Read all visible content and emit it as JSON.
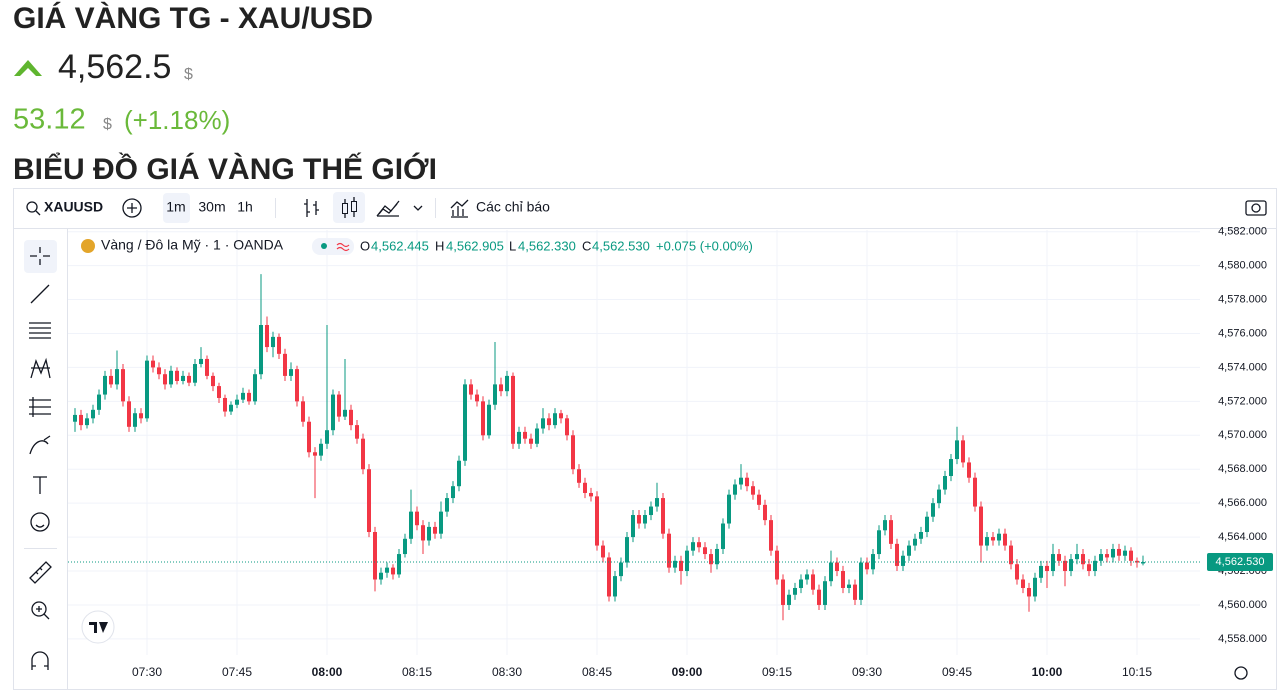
{
  "header": {
    "title": "GIÁ VÀNG TG - XAU/USD",
    "price": "4,562.5",
    "price_unit": "$",
    "change": "53.12",
    "change_unit": "$",
    "change_pct": "(+1.18%)",
    "section_title": "BIỂU ĐỒ GIÁ VÀNG THẾ GIỚI"
  },
  "toolbar": {
    "symbol": "XAUUSD",
    "intervals": [
      "1m",
      "30m",
      "1h"
    ],
    "indicators": "Các chỉ báo"
  },
  "legend": {
    "name": "Vàng / Đô la Mỹ · 1 · OANDA",
    "o_label": "O",
    "o": "4,562.445",
    "h_label": "H",
    "h": "4,562.905",
    "l_label": "L",
    "l": "4,562.330",
    "c_label": "C",
    "c": "4,562.530",
    "change": "+0.075 (+0.00%)"
  },
  "chart_data": {
    "type": "candlestick",
    "up_color": "#089981",
    "down_color": "#f23645",
    "grid": true,
    "ylim": [
      4557.05,
      4582.1
    ],
    "yticks": [
      {
        "value": 4558,
        "label": "4,558.000"
      },
      {
        "value": 4560,
        "label": "4,560.000"
      },
      {
        "value": 4562,
        "label": "4,562.000"
      },
      {
        "value": 4564,
        "label": "4,564.000"
      },
      {
        "value": 4566,
        "label": "4,566.000"
      },
      {
        "value": 4568,
        "label": "4,568.000"
      },
      {
        "value": 4570,
        "label": "4,570.000"
      },
      {
        "value": 4572,
        "label": "4,572.000"
      },
      {
        "value": 4574,
        "label": "4,574.000"
      },
      {
        "value": 4576,
        "label": "4,576.000"
      },
      {
        "value": 4578,
        "label": "4,578.000"
      },
      {
        "value": 4580,
        "label": "4,580.000"
      },
      {
        "value": 4582,
        "label": "4,582.000"
      }
    ],
    "xticks": [
      "07:30",
      "07:45",
      "08:00",
      "08:15",
      "08:30",
      "08:45",
      "09:00",
      "09:15",
      "09:30",
      "09:45",
      "10:00",
      "10:15"
    ],
    "last": {
      "value": 4562.53,
      "label": "4,562.530"
    },
    "x": [
      "07:18",
      "07:19",
      "07:20",
      "07:21",
      "07:22",
      "07:23",
      "07:24",
      "07:25",
      "07:26",
      "07:27",
      "07:28",
      "07:29",
      "07:30",
      "07:31",
      "07:32",
      "07:33",
      "07:34",
      "07:35",
      "07:36",
      "07:37",
      "07:38",
      "07:39",
      "07:40",
      "07:41",
      "07:42",
      "07:43",
      "07:44",
      "07:45",
      "07:46",
      "07:47",
      "07:48",
      "07:49",
      "07:50",
      "07:51",
      "07:52",
      "07:53",
      "07:54",
      "07:55",
      "07:56",
      "07:57",
      "07:58",
      "07:59",
      "08:00",
      "08:01",
      "08:02",
      "08:03",
      "08:04",
      "08:05",
      "08:06",
      "08:07",
      "08:08",
      "08:09",
      "08:10",
      "08:11",
      "08:12",
      "08:13",
      "08:14",
      "08:15",
      "08:16",
      "08:17",
      "08:18",
      "08:19",
      "08:20",
      "08:21",
      "08:22",
      "08:23",
      "08:24",
      "08:25",
      "08:26",
      "08:27",
      "08:28",
      "08:29",
      "08:30",
      "08:31",
      "08:32",
      "08:33",
      "08:34",
      "08:35",
      "08:36",
      "08:37",
      "08:38",
      "08:39",
      "08:40",
      "08:41",
      "08:42",
      "08:43",
      "08:44",
      "08:45",
      "08:46",
      "08:47",
      "08:48",
      "08:49",
      "08:50",
      "08:51",
      "08:52",
      "08:53",
      "08:54",
      "08:55",
      "08:56",
      "08:57",
      "08:58",
      "08:59",
      "09:00",
      "09:01",
      "09:02",
      "09:03",
      "09:04",
      "09:05",
      "09:06",
      "09:07",
      "09:08",
      "09:09",
      "09:10",
      "09:11",
      "09:12",
      "09:13",
      "09:14",
      "09:15",
      "09:16",
      "09:17",
      "09:18",
      "09:19",
      "09:20",
      "09:21",
      "09:22",
      "09:23",
      "09:24",
      "09:25",
      "09:26",
      "09:27",
      "09:28",
      "09:29",
      "09:30",
      "09:31",
      "09:32",
      "09:33",
      "09:34",
      "09:35",
      "09:36",
      "09:37",
      "09:38",
      "09:39",
      "09:40",
      "09:41",
      "09:42",
      "09:43",
      "09:44",
      "09:45",
      "09:46",
      "09:47",
      "09:48",
      "09:49",
      "09:50",
      "09:51",
      "09:52",
      "09:53",
      "09:54",
      "09:55",
      "09:56",
      "09:57",
      "09:58",
      "09:59",
      "10:00",
      "10:01",
      "10:02",
      "10:03",
      "10:04",
      "10:05",
      "10:06",
      "10:07",
      "10:08",
      "10:09",
      "10:10",
      "10:11",
      "10:12",
      "10:13",
      "10:14",
      "10:15",
      "10:16"
    ],
    "ohlc": [
      [
        4570.8,
        4571.6,
        4570.2,
        4571.2
      ],
      [
        4571.2,
        4571.5,
        4570.3,
        4570.6
      ],
      [
        4570.6,
        4571.3,
        4570.4,
        4571.0
      ],
      [
        4571.0,
        4571.8,
        4570.7,
        4571.5
      ],
      [
        4571.5,
        4572.7,
        4571.2,
        4572.4
      ],
      [
        4572.4,
        4573.8,
        4572.1,
        4573.5
      ],
      [
        4573.5,
        4573.9,
        4572.8,
        4573.0
      ],
      [
        4573.0,
        4575.0,
        4572.7,
        4573.9
      ],
      [
        4573.9,
        4574.2,
        4571.7,
        4572.0
      ],
      [
        4572.0,
        4572.3,
        4570.2,
        4570.5
      ],
      [
        4570.5,
        4571.6,
        4570.2,
        4571.3
      ],
      [
        4571.3,
        4571.6,
        4570.7,
        4571.0
      ],
      [
        4571.0,
        4574.7,
        4570.8,
        4574.4
      ],
      [
        4574.4,
        4574.7,
        4573.7,
        4574.0
      ],
      [
        4574.0,
        4574.3,
        4573.3,
        4573.6
      ],
      [
        4573.6,
        4573.9,
        4572.7,
        4573.0
      ],
      [
        4573.0,
        4574.1,
        4572.8,
        4573.8
      ],
      [
        4573.8,
        4574.0,
        4573.0,
        4573.2
      ],
      [
        4573.2,
        4573.8,
        4573.0,
        4573.5
      ],
      [
        4573.5,
        4573.7,
        4572.9,
        4573.1
      ],
      [
        4573.1,
        4574.5,
        4572.9,
        4574.2
      ],
      [
        4574.2,
        4575.2,
        4574.0,
        4574.5
      ],
      [
        4574.5,
        4574.7,
        4573.3,
        4573.5
      ],
      [
        4573.5,
        4573.7,
        4572.6,
        4572.9
      ],
      [
        4572.9,
        4573.1,
        4571.9,
        4572.2
      ],
      [
        4572.2,
        4572.4,
        4571.1,
        4571.4
      ],
      [
        4571.4,
        4572.0,
        4571.2,
        4571.8
      ],
      [
        4571.8,
        4572.4,
        4571.6,
        4572.1
      ],
      [
        4572.1,
        4572.8,
        4571.9,
        4572.5
      ],
      [
        4572.5,
        4572.7,
        4571.8,
        4572.0
      ],
      [
        4572.0,
        4573.9,
        4571.8,
        4573.6
      ],
      [
        4573.6,
        4579.5,
        4573.3,
        4576.5
      ],
      [
        4576.5,
        4577.0,
        4574.9,
        4575.2
      ],
      [
        4575.2,
        4576.1,
        4574.6,
        4575.8
      ],
      [
        4575.8,
        4576.0,
        4574.5,
        4574.8
      ],
      [
        4574.8,
        4575.1,
        4573.2,
        4573.5
      ],
      [
        4573.5,
        4574.3,
        4573.2,
        4573.9
      ],
      [
        4573.9,
        4574.1,
        4571.7,
        4572.0
      ],
      [
        4572.0,
        4572.3,
        4570.5,
        4570.8
      ],
      [
        4570.8,
        4571.1,
        4568.7,
        4569.0
      ],
      [
        4569.0,
        4569.3,
        4566.3,
        4568.8
      ],
      [
        4568.8,
        4569.8,
        4568.5,
        4569.5
      ],
      [
        4569.5,
        4576.5,
        4569.2,
        4570.3
      ],
      [
        4570.3,
        4572.7,
        4570.0,
        4572.4
      ],
      [
        4572.4,
        4572.6,
        4570.8,
        4571.1
      ],
      [
        4571.1,
        4574.5,
        4570.9,
        4571.5
      ],
      [
        4571.5,
        4571.8,
        4570.3,
        4570.6
      ],
      [
        4570.6,
        4570.9,
        4569.5,
        4569.8
      ],
      [
        4569.8,
        4570.1,
        4567.7,
        4568.0
      ],
      [
        4568.0,
        4568.3,
        4564.0,
        4564.3
      ],
      [
        4564.3,
        4564.6,
        4560.8,
        4561.5
      ],
      [
        4561.5,
        4562.2,
        4561.2,
        4561.9
      ],
      [
        4561.9,
        4562.5,
        4561.6,
        4562.2
      ],
      [
        4562.2,
        4562.4,
        4561.5,
        4561.8
      ],
      [
        4561.8,
        4563.3,
        4561.6,
        4563.0
      ],
      [
        4563.0,
        4564.2,
        4562.8,
        4563.9
      ],
      [
        4563.9,
        4566.8,
        4563.6,
        4565.5
      ],
      [
        4565.5,
        4565.8,
        4564.4,
        4564.7
      ],
      [
        4564.7,
        4565.0,
        4563.0,
        4563.8
      ],
      [
        4563.8,
        4564.9,
        4563.5,
        4564.6
      ],
      [
        4564.6,
        4564.9,
        4563.9,
        4564.2
      ],
      [
        4564.2,
        4566.1,
        4563.9,
        4565.5
      ],
      [
        4565.5,
        4566.6,
        4565.2,
        4566.3
      ],
      [
        4566.3,
        4567.3,
        4566.0,
        4567.0
      ],
      [
        4567.0,
        4568.8,
        4566.7,
        4568.5
      ],
      [
        4568.5,
        4573.3,
        4568.2,
        4573.0
      ],
      [
        4573.0,
        4573.3,
        4572.1,
        4572.4
      ],
      [
        4572.4,
        4572.7,
        4571.7,
        4572.0
      ],
      [
        4572.0,
        4572.3,
        4569.7,
        4570.0
      ],
      [
        4570.0,
        4572.1,
        4569.8,
        4571.8
      ],
      [
        4571.8,
        4575.5,
        4571.5,
        4573.0
      ],
      [
        4573.0,
        4573.4,
        4572.3,
        4572.6
      ],
      [
        4572.6,
        4573.8,
        4572.3,
        4573.5
      ],
      [
        4573.5,
        4573.7,
        4569.2,
        4569.5
      ],
      [
        4569.5,
        4570.5,
        4569.2,
        4570.2
      ],
      [
        4570.2,
        4570.5,
        4569.5,
        4569.8
      ],
      [
        4569.8,
        4570.1,
        4569.2,
        4569.5
      ],
      [
        4569.5,
        4570.7,
        4569.3,
        4570.4
      ],
      [
        4570.4,
        4571.6,
        4570.1,
        4571.0
      ],
      [
        4571.0,
        4571.3,
        4570.3,
        4570.6
      ],
      [
        4570.6,
        4571.6,
        4570.4,
        4571.3
      ],
      [
        4571.3,
        4571.5,
        4570.7,
        4571.0
      ],
      [
        4571.0,
        4571.2,
        4569.7,
        4570.0
      ],
      [
        4570.0,
        4570.3,
        4567.7,
        4568.0
      ],
      [
        4568.0,
        4568.3,
        4566.9,
        4567.2
      ],
      [
        4567.2,
        4567.5,
        4566.3,
        4566.6
      ],
      [
        4566.6,
        4566.9,
        4566.1,
        4566.4
      ],
      [
        4566.4,
        4566.7,
        4563.2,
        4563.5
      ],
      [
        4563.5,
        4563.8,
        4562.5,
        4562.8
      ],
      [
        4562.8,
        4563.1,
        4560.2,
        4560.5
      ],
      [
        4560.5,
        4562.0,
        4560.2,
        4561.7
      ],
      [
        4561.7,
        4562.8,
        4561.4,
        4562.5
      ],
      [
        4562.5,
        4564.3,
        4562.2,
        4564.0
      ],
      [
        4564.0,
        4565.6,
        4563.7,
        4565.3
      ],
      [
        4565.3,
        4565.6,
        4564.5,
        4564.8
      ],
      [
        4564.8,
        4565.6,
        4564.5,
        4565.3
      ],
      [
        4565.3,
        4566.1,
        4565.0,
        4565.8
      ],
      [
        4565.8,
        4567.2,
        4565.5,
        4566.3
      ],
      [
        4566.3,
        4566.6,
        4563.9,
        4564.2
      ],
      [
        4564.2,
        4564.5,
        4561.9,
        4562.2
      ],
      [
        4562.2,
        4562.9,
        4561.9,
        4562.6
      ],
      [
        4562.6,
        4562.9,
        4561.2,
        4562.0
      ],
      [
        4562.0,
        4563.5,
        4561.7,
        4563.2
      ],
      [
        4563.2,
        4564.0,
        4562.9,
        4563.7
      ],
      [
        4563.7,
        4564.0,
        4563.1,
        4563.4
      ],
      [
        4563.4,
        4563.7,
        4562.7,
        4563.0
      ],
      [
        4563.0,
        4563.3,
        4561.9,
        4562.4
      ],
      [
        4562.4,
        4563.6,
        4562.1,
        4563.3
      ],
      [
        4563.3,
        4565.1,
        4563.0,
        4564.8
      ],
      [
        4564.8,
        4566.8,
        4564.5,
        4566.5
      ],
      [
        4566.5,
        4567.4,
        4566.2,
        4567.1
      ],
      [
        4567.1,
        4568.3,
        4566.8,
        4567.5
      ],
      [
        4567.5,
        4567.8,
        4566.7,
        4567.0
      ],
      [
        4567.0,
        4567.3,
        4566.2,
        4566.5
      ],
      [
        4566.5,
        4566.8,
        4565.6,
        4565.9
      ],
      [
        4565.9,
        4566.2,
        4564.7,
        4565.0
      ],
      [
        4565.0,
        4565.3,
        4562.9,
        4563.2
      ],
      [
        4563.2,
        4563.5,
        4561.2,
        4561.5
      ],
      [
        4561.5,
        4561.8,
        4559.1,
        4560.0
      ],
      [
        4560.0,
        4560.9,
        4559.7,
        4560.6
      ],
      [
        4560.6,
        4561.3,
        4560.3,
        4561.0
      ],
      [
        4561.0,
        4561.8,
        4560.7,
        4561.5
      ],
      [
        4561.5,
        4562.1,
        4561.2,
        4561.8
      ],
      [
        4561.8,
        4562.1,
        4560.6,
        4560.9
      ],
      [
        4560.9,
        4561.2,
        4559.7,
        4560.0
      ],
      [
        4560.0,
        4561.7,
        4559.7,
        4561.4
      ],
      [
        4561.4,
        4563.2,
        4561.1,
        4562.5
      ],
      [
        4562.5,
        4562.8,
        4561.7,
        4562.0
      ],
      [
        4562.0,
        4562.3,
        4560.7,
        4561.0
      ],
      [
        4561.0,
        4561.5,
        4560.7,
        4561.2
      ],
      [
        4561.2,
        4561.5,
        4560.0,
        4560.3
      ],
      [
        4560.3,
        4562.8,
        4560.0,
        4562.5
      ],
      [
        4562.5,
        4562.8,
        4561.8,
        4562.1
      ],
      [
        4562.1,
        4563.3,
        4561.8,
        4563.0
      ],
      [
        4563.0,
        4564.7,
        4562.7,
        4564.4
      ],
      [
        4564.4,
        4565.3,
        4564.1,
        4565.0
      ],
      [
        4565.0,
        4565.3,
        4563.3,
        4563.6
      ],
      [
        4563.6,
        4563.9,
        4562.0,
        4562.3
      ],
      [
        4562.3,
        4563.2,
        4562.0,
        4562.9
      ],
      [
        4562.9,
        4563.8,
        4562.6,
        4563.5
      ],
      [
        4563.5,
        4564.2,
        4563.2,
        4563.9
      ],
      [
        4563.9,
        4564.6,
        4563.6,
        4564.3
      ],
      [
        4564.3,
        4565.5,
        4564.0,
        4565.2
      ],
      [
        4565.2,
        4566.3,
        4564.9,
        4566.0
      ],
      [
        4566.0,
        4567.1,
        4565.7,
        4566.8
      ],
      [
        4566.8,
        4567.9,
        4566.5,
        4567.6
      ],
      [
        4567.6,
        4568.9,
        4567.3,
        4568.6
      ],
      [
        4568.6,
        4570.5,
        4568.3,
        4569.7
      ],
      [
        4569.7,
        4570.0,
        4568.1,
        4568.4
      ],
      [
        4568.4,
        4568.7,
        4567.2,
        4567.5
      ],
      [
        4567.5,
        4567.8,
        4565.5,
        4565.8
      ],
      [
        4565.8,
        4566.1,
        4562.5,
        4563.5
      ],
      [
        4563.5,
        4564.3,
        4563.2,
        4564.0
      ],
      [
        4564.0,
        4564.3,
        4563.5,
        4563.8
      ],
      [
        4563.8,
        4564.5,
        4563.5,
        4564.2
      ],
      [
        4564.2,
        4564.5,
        4563.2,
        4563.5
      ],
      [
        4563.5,
        4563.8,
        4562.1,
        4562.4
      ],
      [
        4562.4,
        4562.7,
        4561.2,
        4561.5
      ],
      [
        4561.5,
        4561.8,
        4560.7,
        4561.0
      ],
      [
        4561.0,
        4561.3,
        4559.6,
        4560.5
      ],
      [
        4560.5,
        4561.9,
        4560.2,
        4561.6
      ],
      [
        4561.6,
        4562.6,
        4561.3,
        4562.3
      ],
      [
        4562.3,
        4562.6,
        4561.0,
        4562.0
      ],
      [
        4562.0,
        4563.6,
        4561.7,
        4563.0
      ],
      [
        4563.0,
        4563.3,
        4562.3,
        4562.6
      ],
      [
        4562.6,
        4562.9,
        4561.1,
        4562.0
      ],
      [
        4562.0,
        4563.0,
        4561.7,
        4562.7
      ],
      [
        4562.7,
        4563.6,
        4562.4,
        4563.0
      ],
      [
        4563.0,
        4563.3,
        4562.1,
        4562.4
      ],
      [
        4562.4,
        4562.7,
        4561.7,
        4562.0
      ],
      [
        4562.0,
        4562.9,
        4561.7,
        4562.6
      ],
      [
        4562.6,
        4563.3,
        4562.3,
        4563.0
      ],
      [
        4563.0,
        4563.3,
        4562.5,
        4562.8
      ],
      [
        4562.8,
        4563.6,
        4562.5,
        4563.3
      ],
      [
        4563.3,
        4563.6,
        4562.6,
        4562.9
      ],
      [
        4562.9,
        4563.5,
        4562.6,
        4563.2
      ],
      [
        4563.2,
        4563.4,
        4562.3,
        4562.6
      ],
      [
        4562.6,
        4562.8,
        4562.2,
        4562.5
      ],
      [
        4562.445,
        4562.905,
        4562.33,
        4562.53
      ]
    ]
  }
}
